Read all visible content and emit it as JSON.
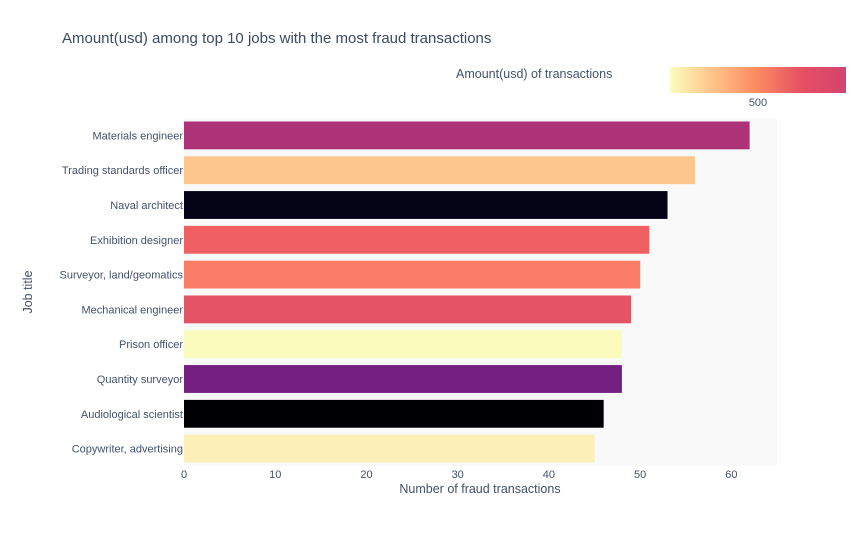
{
  "chart_data": {
    "type": "bar",
    "orientation": "horizontal",
    "title": "Amount(usd) among top 10 jobs with the most fraud transactions",
    "xlabel": "Number of fraud transactions",
    "ylabel": "Job title",
    "xlim": [
      0,
      65
    ],
    "x_ticks": [
      0,
      10,
      20,
      30,
      40,
      50,
      60
    ],
    "grid": false,
    "categories": [
      "Materials engineer",
      "Trading standards officer",
      "Naval architect",
      "Exhibition designer",
      "Surveyor, land/geomatics",
      "Mechanical engineer",
      "Prison officer",
      "Quantity surveyor",
      "Audiological scientist",
      "Copywriter, advertising"
    ],
    "values": [
      62,
      56,
      53,
      51,
      50,
      49,
      48,
      48,
      46,
      45
    ],
    "bar_colors": [
      "#ad3378",
      "#fcc68c",
      "#050417",
      "#f05f61",
      "#f97c67",
      "#e35566",
      "#fcfbbe",
      "#721f81",
      "#000004",
      "#fcf0b8"
    ],
    "colorbar": {
      "title": "Amount(usd) of transactions",
      "tick_labels": [
        "500"
      ],
      "colors": [
        "#fcfdbf",
        "#fec287",
        "#fb8861",
        "#e55064",
        "#d3436e"
      ],
      "placement": "top-right"
    }
  }
}
